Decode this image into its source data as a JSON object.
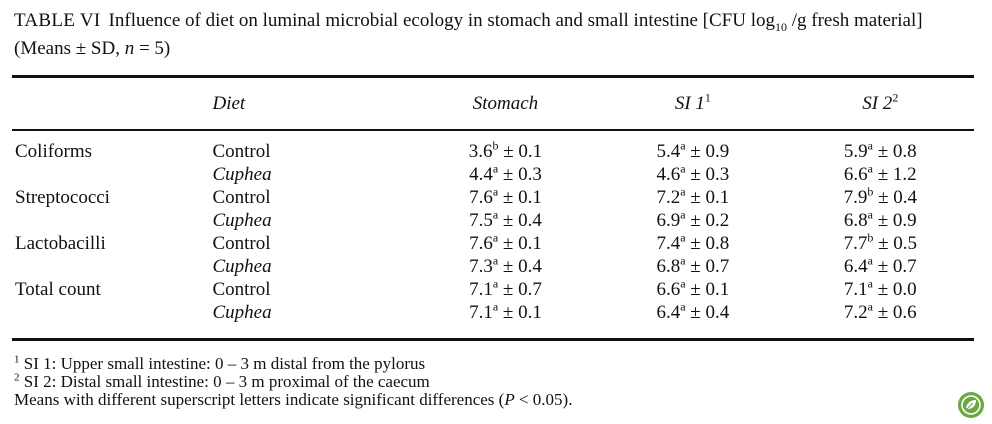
{
  "caption": {
    "label": "TABLE VI",
    "text_part1": "Influence of diet on luminal microbial ecology in stomach and small intestine [CFU log",
    "subscript": "10",
    "text_part2": " /g fresh material] (Means ± SD, ",
    "n_symbol": "n",
    "text_part3": " = 5)"
  },
  "table": {
    "headers": {
      "diet": "Diet",
      "stomach": "Stomach",
      "si1": "SI 1",
      "si1_sup": "1",
      "si2": "SI 2",
      "si2_sup": "2"
    },
    "rows": [
      {
        "group": "Coliforms",
        "diet": "Control",
        "stomach": {
          "mean": "3.6",
          "sup": "b",
          "sd": "± 0.1"
        },
        "si1": {
          "mean": "5.4",
          "sup": "a",
          "sd": "± 0.9"
        },
        "si2": {
          "mean": "5.9",
          "sup": "a",
          "sd": "± 0.8"
        }
      },
      {
        "group": "",
        "diet": "Cuphea",
        "stomach": {
          "mean": "4.4",
          "sup": "a",
          "sd": "± 0.3"
        },
        "si1": {
          "mean": "4.6",
          "sup": "a",
          "sd": "± 0.3"
        },
        "si2": {
          "mean": "6.6",
          "sup": "a",
          "sd": "± 1.2"
        }
      },
      {
        "group": "Streptococci",
        "diet": "Control",
        "stomach": {
          "mean": "7.6",
          "sup": "a",
          "sd": "± 0.1"
        },
        "si1": {
          "mean": "7.2",
          "sup": "a",
          "sd": "± 0.1"
        },
        "si2": {
          "mean": "7.9",
          "sup": "b",
          "sd": "± 0.4"
        }
      },
      {
        "group": "",
        "diet": "Cuphea",
        "stomach": {
          "mean": "7.5",
          "sup": "a",
          "sd": "± 0.4"
        },
        "si1": {
          "mean": "6.9",
          "sup": "a",
          "sd": "± 0.2"
        },
        "si2": {
          "mean": "6.8",
          "sup": "a",
          "sd": "± 0.9"
        }
      },
      {
        "group": "Lactobacilli",
        "diet": "Control",
        "stomach": {
          "mean": "7.6",
          "sup": "a",
          "sd": "± 0.1"
        },
        "si1": {
          "mean": "7.4",
          "sup": "a",
          "sd": "± 0.8"
        },
        "si2": {
          "mean": "7.7",
          "sup": "b",
          "sd": "± 0.5"
        }
      },
      {
        "group": "",
        "diet": "Cuphea",
        "stomach": {
          "mean": "7.3",
          "sup": "a",
          "sd": "± 0.4"
        },
        "si1": {
          "mean": "6.8",
          "sup": "a",
          "sd": "± 0.7"
        },
        "si2": {
          "mean": "6.4",
          "sup": "a",
          "sd": "± 0.7"
        }
      },
      {
        "group": "Total count",
        "diet": "Control",
        "stomach": {
          "mean": "7.1",
          "sup": "a",
          "sd": "± 0.7"
        },
        "si1": {
          "mean": "6.6",
          "sup": "a",
          "sd": "± 0.1"
        },
        "si2": {
          "mean": "7.1",
          "sup": "a",
          "sd": "± 0.0"
        }
      },
      {
        "group": "",
        "diet": "Cuphea",
        "stomach": {
          "mean": "7.1",
          "sup": "a",
          "sd": "± 0.1"
        },
        "si1": {
          "mean": "6.4",
          "sup": "a",
          "sd": "± 0.4"
        },
        "si2": {
          "mean": "7.2",
          "sup": "a",
          "sd": "± 0.6"
        }
      }
    ]
  },
  "footnotes": {
    "note1_mark": "1",
    "note1": " SI 1: Upper small intestine: 0 – 3 m distal from the pylorus",
    "note2_mark": "2",
    "note2": " SI 2: Distal small intestine: 0 – 3 m proximal of the caecum",
    "note3_part1": "Means with different superscript letters indicate significant differences (",
    "note3_p": "P",
    "note3_part2": " < 0.05)."
  },
  "logo": {
    "icon": "publisher-leaf-icon",
    "color": "#6aa842"
  }
}
